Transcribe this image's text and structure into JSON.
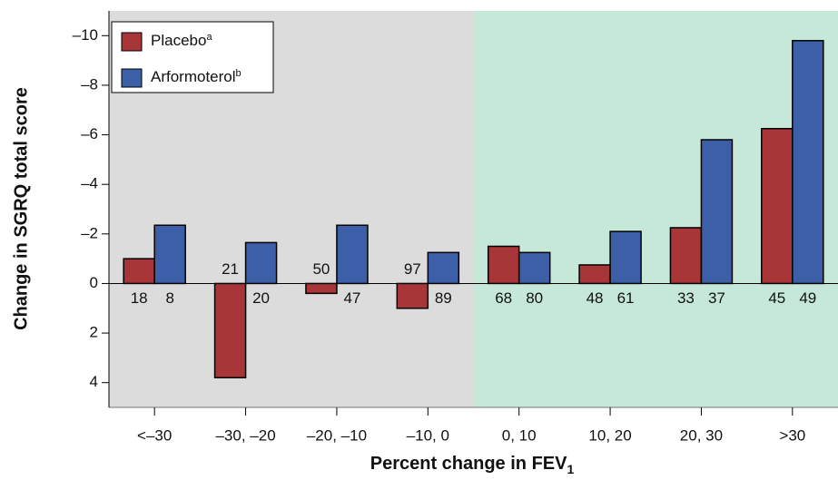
{
  "chart_data": {
    "type": "bar",
    "y_label": "Change in SGRQ total score",
    "x_label": "Percent change in FEV",
    "x_label_subscript": "1",
    "categories": [
      "<–30",
      "–30, –20",
      "–20, –10",
      "–10, 0",
      "0, 10",
      "10, 20",
      "20, 30",
      ">30"
    ],
    "series": [
      {
        "name": "Placebo",
        "name_superscript": "a",
        "color": "#a83538",
        "values": [
          -1.0,
          3.8,
          0.4,
          1.0,
          -1.5,
          -0.75,
          -2.25,
          -6.25
        ],
        "n": [
          18,
          21,
          50,
          97,
          68,
          48,
          33,
          45
        ]
      },
      {
        "name": "Arformoterol",
        "name_superscript": "b",
        "color": "#3c5fa8",
        "values": [
          -2.35,
          -1.65,
          -2.35,
          -1.25,
          -1.25,
          -2.1,
          -5.8,
          -9.8
        ],
        "n": [
          8,
          20,
          47,
          89,
          80,
          61,
          37,
          49
        ]
      }
    ],
    "ylim": [
      -11,
      5
    ],
    "y_inverted": true,
    "yticks": [
      {
        "value": -10,
        "label": "–10"
      },
      {
        "value": -8,
        "label": "–8"
      },
      {
        "value": -6,
        "label": "–6"
      },
      {
        "value": -4,
        "label": "–4"
      },
      {
        "value": -2,
        "label": "–2"
      },
      0,
      2,
      4
    ],
    "legend": "top-left"
  }
}
